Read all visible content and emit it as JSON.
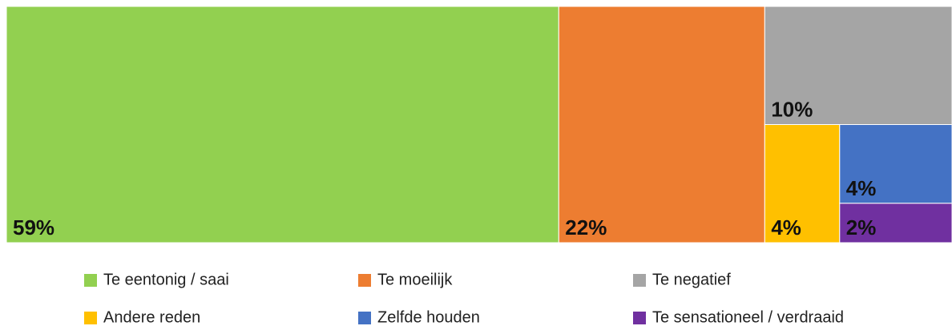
{
  "chart_data": {
    "type": "treemap",
    "categories": [
      "Te eentonig / saai",
      "Te moeilijk",
      "Te negatief",
      "Andere reden",
      "Zelfde houden",
      "Te sensationeel / verdraaid"
    ],
    "values": [
      59,
      22,
      10,
      4,
      4,
      2
    ],
    "value_labels": [
      "59%",
      "22%",
      "10%",
      "4%",
      "4%",
      "2%"
    ],
    "colors": [
      "#92d050",
      "#ed7d31",
      "#a5a5a5",
      "#ffc000",
      "#4472c4",
      "#7030a0"
    ],
    "legend": "bottom"
  }
}
